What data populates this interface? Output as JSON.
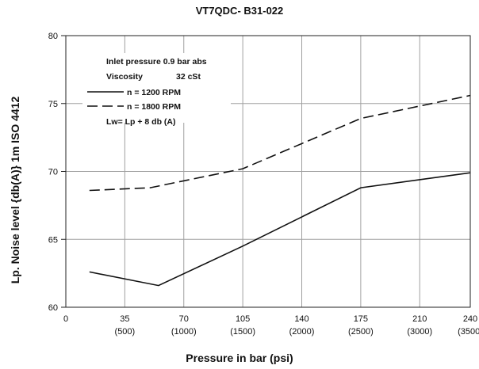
{
  "chart_data": {
    "type": "line",
    "title": "VT7QDC- B31-022",
    "xlabel": "Pressure in bar (psi)",
    "ylabel": "Lp. Noise level {db(A)} 1m ISO 4412",
    "xlim": [
      0,
      240
    ],
    "ylim": [
      60,
      80
    ],
    "x_ticks": [
      "0",
      "35",
      "70",
      "105",
      "140",
      "175",
      "210",
      "240"
    ],
    "x_ticks_psi": [
      "(500)",
      "(1000)",
      "(1500)",
      "(2000)",
      "(2500)",
      "(3000)",
      "(3500)"
    ],
    "y_ticks": [
      "60",
      "65",
      "70",
      "75",
      "80"
    ],
    "grid": true,
    "annotations": [
      "Inlet pressure 0.9 bar abs",
      "Viscosity",
      "32 cSt",
      "Lw= Lp + 8 db (A)"
    ],
    "series": [
      {
        "name": "n = 1200 RPM",
        "style": "solid",
        "x": [
          14,
          55,
          105,
          175,
          240
        ],
        "y": [
          62.6,
          61.6,
          64.5,
          68.8,
          69.9
        ]
      },
      {
        "name": "n = 1800 RPM",
        "style": "dashed",
        "x": [
          14,
          50,
          105,
          175,
          240
        ],
        "y": [
          68.6,
          68.8,
          70.2,
          73.9,
          75.6
        ]
      }
    ],
    "colors": {
      "line": "#111111",
      "grid": "#a0a0a0",
      "axis": "#222222"
    }
  }
}
